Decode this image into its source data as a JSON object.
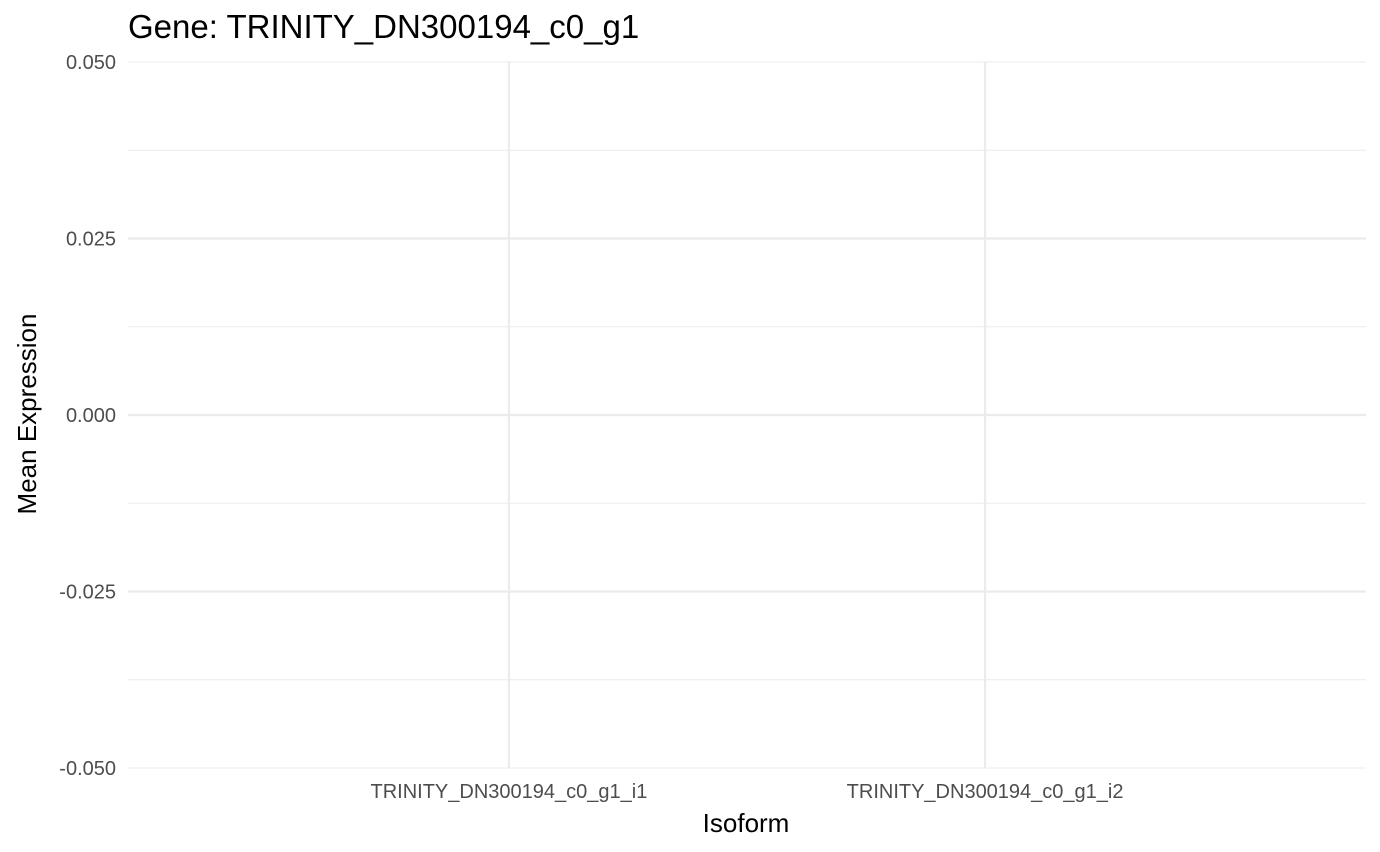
{
  "chart_data": {
    "type": "bar",
    "title": "Gene: TRINITY_DN300194_c0_g1",
    "xlabel": "Isoform",
    "ylabel": "Mean Expression",
    "categories": [
      "TRINITY_DN300194_c0_g1_i1",
      "TRINITY_DN300194_c0_g1_i2"
    ],
    "values": [
      0,
      0
    ],
    "ylim": [
      -0.05,
      0.05
    ],
    "yticks": [
      -0.05,
      -0.025,
      0,
      0.025,
      0.05
    ],
    "ytick_labels": [
      "-0.050",
      "-0.025",
      "0.000",
      "0.025",
      "0.050"
    ],
    "grid": true,
    "legend": "none"
  }
}
